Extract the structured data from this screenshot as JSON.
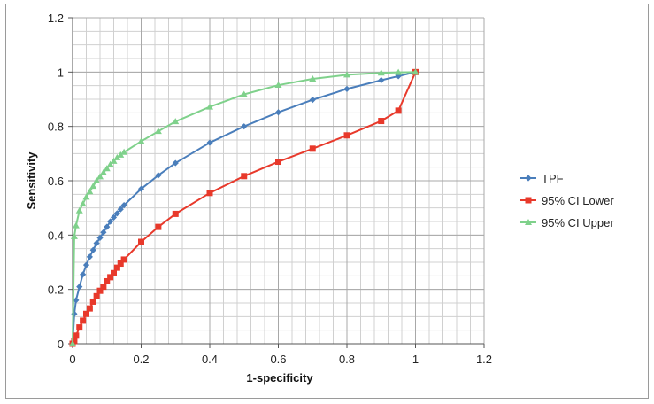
{
  "chart_data": {
    "type": "line",
    "title": "",
    "xlabel": "1-specificity",
    "ylabel": "Sensitivity",
    "xlim": [
      0,
      1.2
    ],
    "ylim": [
      0,
      1.2
    ],
    "xticks": [
      0,
      0.2,
      0.4,
      0.6,
      0.8,
      1,
      1.2
    ],
    "yticks": [
      0,
      0.2,
      0.4,
      0.6,
      0.8,
      1,
      1.2
    ],
    "xtick_labels": [
      "0",
      "0.2",
      "0.4",
      "0.6",
      "0.8",
      "1",
      "1.2"
    ],
    "ytick_labels": [
      "0",
      "0.2",
      "0.4",
      "0.6",
      "0.8",
      "1",
      "1.2"
    ],
    "grid": true,
    "legend_position": "right",
    "series": [
      {
        "name": "TPF",
        "color": "#4a7ebb",
        "marker": "diamond",
        "points": [
          [
            0,
            0
          ],
          [
            0.005,
            0.11
          ],
          [
            0.01,
            0.16
          ],
          [
            0.02,
            0.21
          ],
          [
            0.03,
            0.255
          ],
          [
            0.04,
            0.29
          ],
          [
            0.05,
            0.32
          ],
          [
            0.06,
            0.345
          ],
          [
            0.07,
            0.37
          ],
          [
            0.08,
            0.39
          ],
          [
            0.09,
            0.41
          ],
          [
            0.1,
            0.43
          ],
          [
            0.11,
            0.45
          ],
          [
            0.12,
            0.465
          ],
          [
            0.13,
            0.48
          ],
          [
            0.14,
            0.495
          ],
          [
            0.15,
            0.51
          ],
          [
            0.2,
            0.57
          ],
          [
            0.25,
            0.62
          ],
          [
            0.3,
            0.665
          ],
          [
            0.4,
            0.74
          ],
          [
            0.5,
            0.8
          ],
          [
            0.6,
            0.852
          ],
          [
            0.7,
            0.898
          ],
          [
            0.8,
            0.938
          ],
          [
            0.9,
            0.97
          ],
          [
            0.95,
            0.985
          ],
          [
            1,
            1
          ]
        ]
      },
      {
        "name": "95% CI Lower",
        "color": "#e8392b",
        "marker": "square",
        "points": [
          [
            0,
            0
          ],
          [
            0.005,
            0.01
          ],
          [
            0.01,
            0.03
          ],
          [
            0.02,
            0.06
          ],
          [
            0.03,
            0.085
          ],
          [
            0.04,
            0.11
          ],
          [
            0.05,
            0.13
          ],
          [
            0.06,
            0.155
          ],
          [
            0.07,
            0.175
          ],
          [
            0.08,
            0.195
          ],
          [
            0.09,
            0.21
          ],
          [
            0.1,
            0.23
          ],
          [
            0.11,
            0.245
          ],
          [
            0.12,
            0.26
          ],
          [
            0.13,
            0.28
          ],
          [
            0.14,
            0.295
          ],
          [
            0.15,
            0.31
          ],
          [
            0.2,
            0.375
          ],
          [
            0.25,
            0.43
          ],
          [
            0.3,
            0.478
          ],
          [
            0.4,
            0.555
          ],
          [
            0.5,
            0.617
          ],
          [
            0.6,
            0.67
          ],
          [
            0.7,
            0.718
          ],
          [
            0.8,
            0.767
          ],
          [
            0.9,
            0.82
          ],
          [
            0.95,
            0.858
          ],
          [
            1,
            1
          ]
        ]
      },
      {
        "name": "95% CI Upper",
        "color": "#7fd18b",
        "marker": "triangle",
        "points": [
          [
            0,
            0
          ],
          [
            0.005,
            0.395
          ],
          [
            0.01,
            0.435
          ],
          [
            0.02,
            0.49
          ],
          [
            0.03,
            0.515
          ],
          [
            0.04,
            0.54
          ],
          [
            0.05,
            0.56
          ],
          [
            0.06,
            0.58
          ],
          [
            0.07,
            0.6
          ],
          [
            0.08,
            0.615
          ],
          [
            0.09,
            0.63
          ],
          [
            0.1,
            0.645
          ],
          [
            0.11,
            0.66
          ],
          [
            0.12,
            0.672
          ],
          [
            0.13,
            0.685
          ],
          [
            0.14,
            0.695
          ],
          [
            0.15,
            0.705
          ],
          [
            0.2,
            0.745
          ],
          [
            0.25,
            0.782
          ],
          [
            0.3,
            0.818
          ],
          [
            0.4,
            0.872
          ],
          [
            0.5,
            0.918
          ],
          [
            0.6,
            0.952
          ],
          [
            0.7,
            0.975
          ],
          [
            0.8,
            0.99
          ],
          [
            0.9,
            0.997
          ],
          [
            0.95,
            0.999
          ],
          [
            1,
            1
          ]
        ]
      }
    ]
  }
}
